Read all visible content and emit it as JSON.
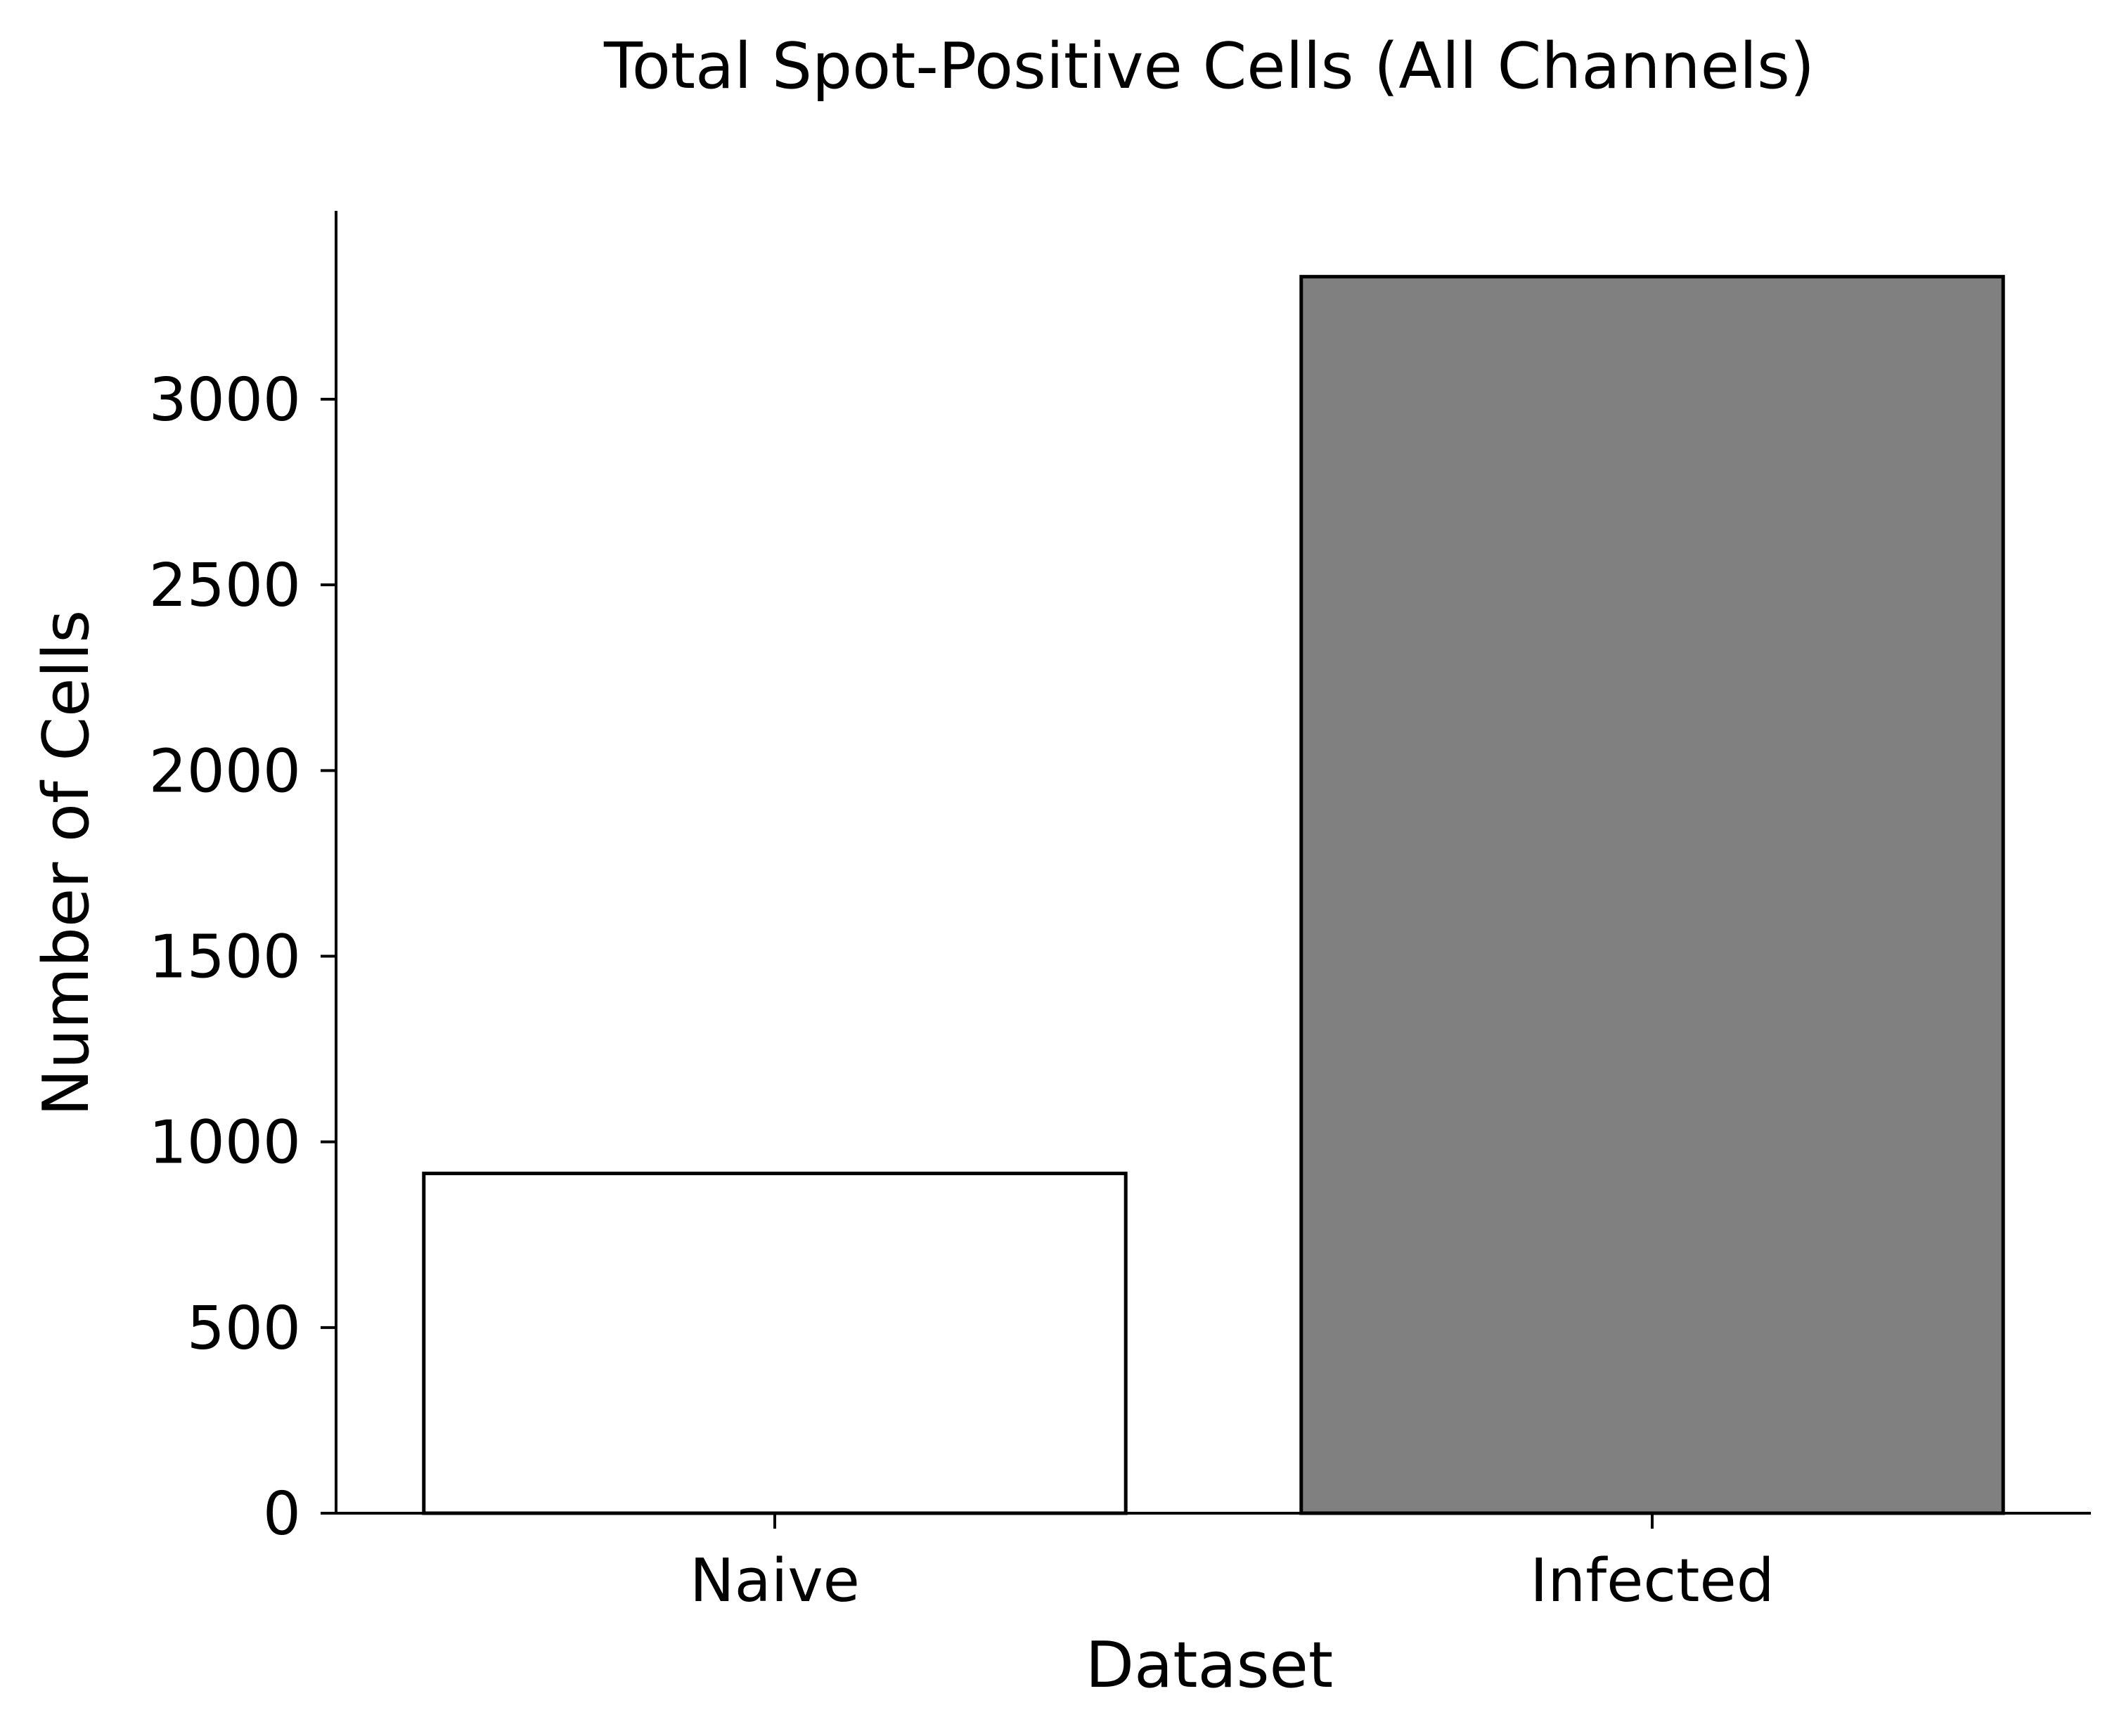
{
  "chart_data": {
    "type": "bar",
    "title": "Total Spot-Positive Cells (All Channels)",
    "xlabel": "Dataset",
    "ylabel": "Number of Cells",
    "categories": [
      "Naive",
      "Infected"
    ],
    "values": [
      915,
      3330
    ],
    "bar_colors": [
      "#ffffff",
      "#808080"
    ],
    "edge_color": "#000000",
    "ylim": [
      0,
      3500
    ],
    "yticks": [
      0,
      500,
      1000,
      1500,
      2000,
      2500,
      3000
    ],
    "ytick_labels": [
      "0",
      "500",
      "1000",
      "1500",
      "2000",
      "2500",
      "3000"
    ],
    "grid": false,
    "legend": "none"
  }
}
